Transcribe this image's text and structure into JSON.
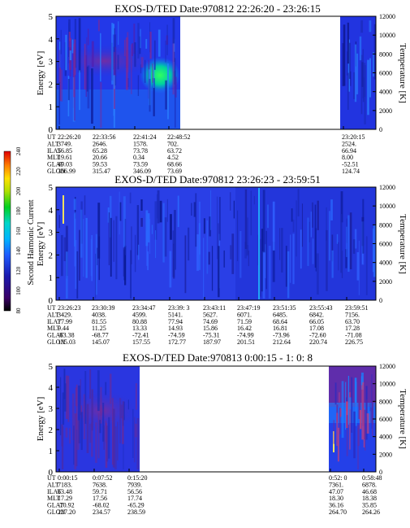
{
  "chart_data": [
    {
      "type": "heatmap",
      "title": "EXOS-D/TED   Date:970812  22:26:20 - 23:26:15",
      "ylabel": "Energy [eV]",
      "y2label": "Temperature [K]",
      "ylim": [
        0,
        5
      ],
      "y2lim": [
        0,
        12000
      ],
      "yticks": [
        "0",
        "1",
        "2",
        "3",
        "4",
        "5"
      ],
      "y2ticks": [
        "0",
        "2000",
        "4000",
        "6000",
        "8000",
        "10000",
        "12000"
      ],
      "orbit_labels": [
        "UT",
        "ALT",
        "ILAT",
        "MLT",
        "GLAT",
        "GLON"
      ],
      "orbit_columns": [
        {
          "UT": "22:26:20",
          "ALT": "3749.",
          "ILAT": "56.85",
          "MLT": "19.61",
          "GLAT": "49.03",
          "GLON": "306.99"
        },
        {
          "UT": "22:33:56",
          "ALT": "2646.",
          "ILAT": "65.28",
          "MLT": "20.66",
          "GLAT": "59.53",
          "GLON": "315.47"
        },
        {
          "UT": "22:41:24",
          "ALT": "1578.",
          "ILAT": "73.78",
          "MLT": "0.34",
          "GLAT": "73.59",
          "GLON": "346.09"
        },
        {
          "UT": "22:48:52",
          "ALT": "702.",
          "ILAT": "63.72",
          "MLT": "4.52",
          "GLAT": "68.66",
          "GLON": "73.69"
        },
        {
          "UT": "23:20:15",
          "ALT": "2524.",
          "ILAT": "66.94",
          "MLT": "8.00",
          "GLAT": "-52.51",
          "GLON": "124.74"
        }
      ]
    },
    {
      "type": "heatmap",
      "title": "EXOS-D/TED   Date:970812  23:26:23 - 23:59:51",
      "ylabel": "Energy [eV]",
      "y2label": "Temperature [K]",
      "ylim": [
        0,
        5
      ],
      "y2lim": [
        0,
        12000
      ],
      "yticks": [
        "0",
        "1",
        "2",
        "3",
        "4",
        "5"
      ],
      "y2ticks": [
        "0",
        "2000",
        "4000",
        "6000",
        "8000",
        "10000",
        "12000"
      ],
      "orbit_labels": [
        "UT",
        "ALT",
        "ILAT",
        "MLT",
        "GLAT",
        "GLON"
      ],
      "orbit_columns": [
        {
          "UT": "23:26:23",
          "ALT": "3429.",
          "ILAT": "77.99",
          "MLT": "9.44",
          "GLAT": "-63.38",
          "GLON": "135.03"
        },
        {
          "UT": "23:30:39",
          "ALT": "4038.",
          "ILAT": "81.55",
          "MLT": "11.25",
          "GLAT": "-68.77",
          "GLON": "145.07"
        },
        {
          "UT": "23:34:47",
          "ALT": "4599.",
          "ILAT": "80.88",
          "MLT": "13.33",
          "GLAT": "-72.41",
          "GLON": "157.55"
        },
        {
          "UT": "23:39: 3",
          "ALT": "5141.",
          "ILAT": "77.94",
          "MLT": "14.93",
          "GLAT": "-74.59",
          "GLON": "172.77"
        },
        {
          "UT": "23:43:11",
          "ALT": "5627.",
          "ILAT": "74.69",
          "MLT": "15.86",
          "GLAT": "-75.31",
          "GLON": "187.97"
        },
        {
          "UT": "23:47:19",
          "ALT": "6071.",
          "ILAT": "71.59",
          "MLT": "16.42",
          "GLAT": "-74.99",
          "GLON": "201.51"
        },
        {
          "UT": "23:51:35",
          "ALT": "6485.",
          "ILAT": "68.64",
          "MLT": "16.81",
          "GLAT": "-73.96",
          "GLON": "212.64"
        },
        {
          "UT": "23:55:43",
          "ALT": "6842.",
          "ILAT": "66.05",
          "MLT": "17.08",
          "GLAT": "-72.60",
          "GLON": "220.74"
        },
        {
          "UT": "23:59:51",
          "ALT": "7156.",
          "ILAT": "63.70",
          "MLT": "17.28",
          "GLAT": "-71.08",
          "GLON": "226.75"
        }
      ]
    },
    {
      "type": "heatmap",
      "title": "EXOS-D/TED   Date:970813  0:00:15 - 1: 0: 8",
      "ylabel": "Energy [eV]",
      "y2label": "Temperature [K]",
      "ylim": [
        0,
        5
      ],
      "y2lim": [
        0,
        12000
      ],
      "yticks": [
        "0",
        "1",
        "2",
        "3",
        "4",
        "5"
      ],
      "y2ticks": [
        "0",
        "2000",
        "4000",
        "6000",
        "8000",
        "10000",
        "12000"
      ],
      "orbit_labels": [
        "UT",
        "ALT",
        "ILAT",
        "MLT",
        "GLAT",
        "GLON"
      ],
      "orbit_columns": [
        {
          "UT": "0:00:15",
          "ALT": "7183.",
          "ILAT": "63.48",
          "MLT": "17.29",
          "GLAT": "-70.92",
          "GLON": "227.20"
        },
        {
          "UT": "0:07:52",
          "ALT": "7638.",
          "ILAT": "59.71",
          "MLT": "17.56",
          "GLAT": "-68.02",
          "GLON": "234.57"
        },
        {
          "UT": "0:15:20",
          "ALT": "7939.",
          "ILAT": "56.56",
          "MLT": "17.74",
          "GLAT": "-65.29",
          "GLON": "238.59"
        },
        {
          "UT": "0:52: 0",
          "ALT": "7361.",
          "ILAT": "47.07",
          "MLT": "18.30",
          "GLAT": "36.16",
          "GLON": "264.70"
        },
        {
          "UT": "0:58:48",
          "ALT": "6878.",
          "ILAT": "46.68",
          "MLT": "18.38",
          "GLAT": "35.85",
          "GLON": "264.26"
        }
      ]
    }
  ],
  "colorbar": {
    "label": "Second Harmonic Current",
    "ticks": [
      "80",
      "100",
      "120",
      "140",
      "160",
      "180",
      "200",
      "220",
      "240"
    ],
    "range": [
      80,
      240
    ]
  }
}
